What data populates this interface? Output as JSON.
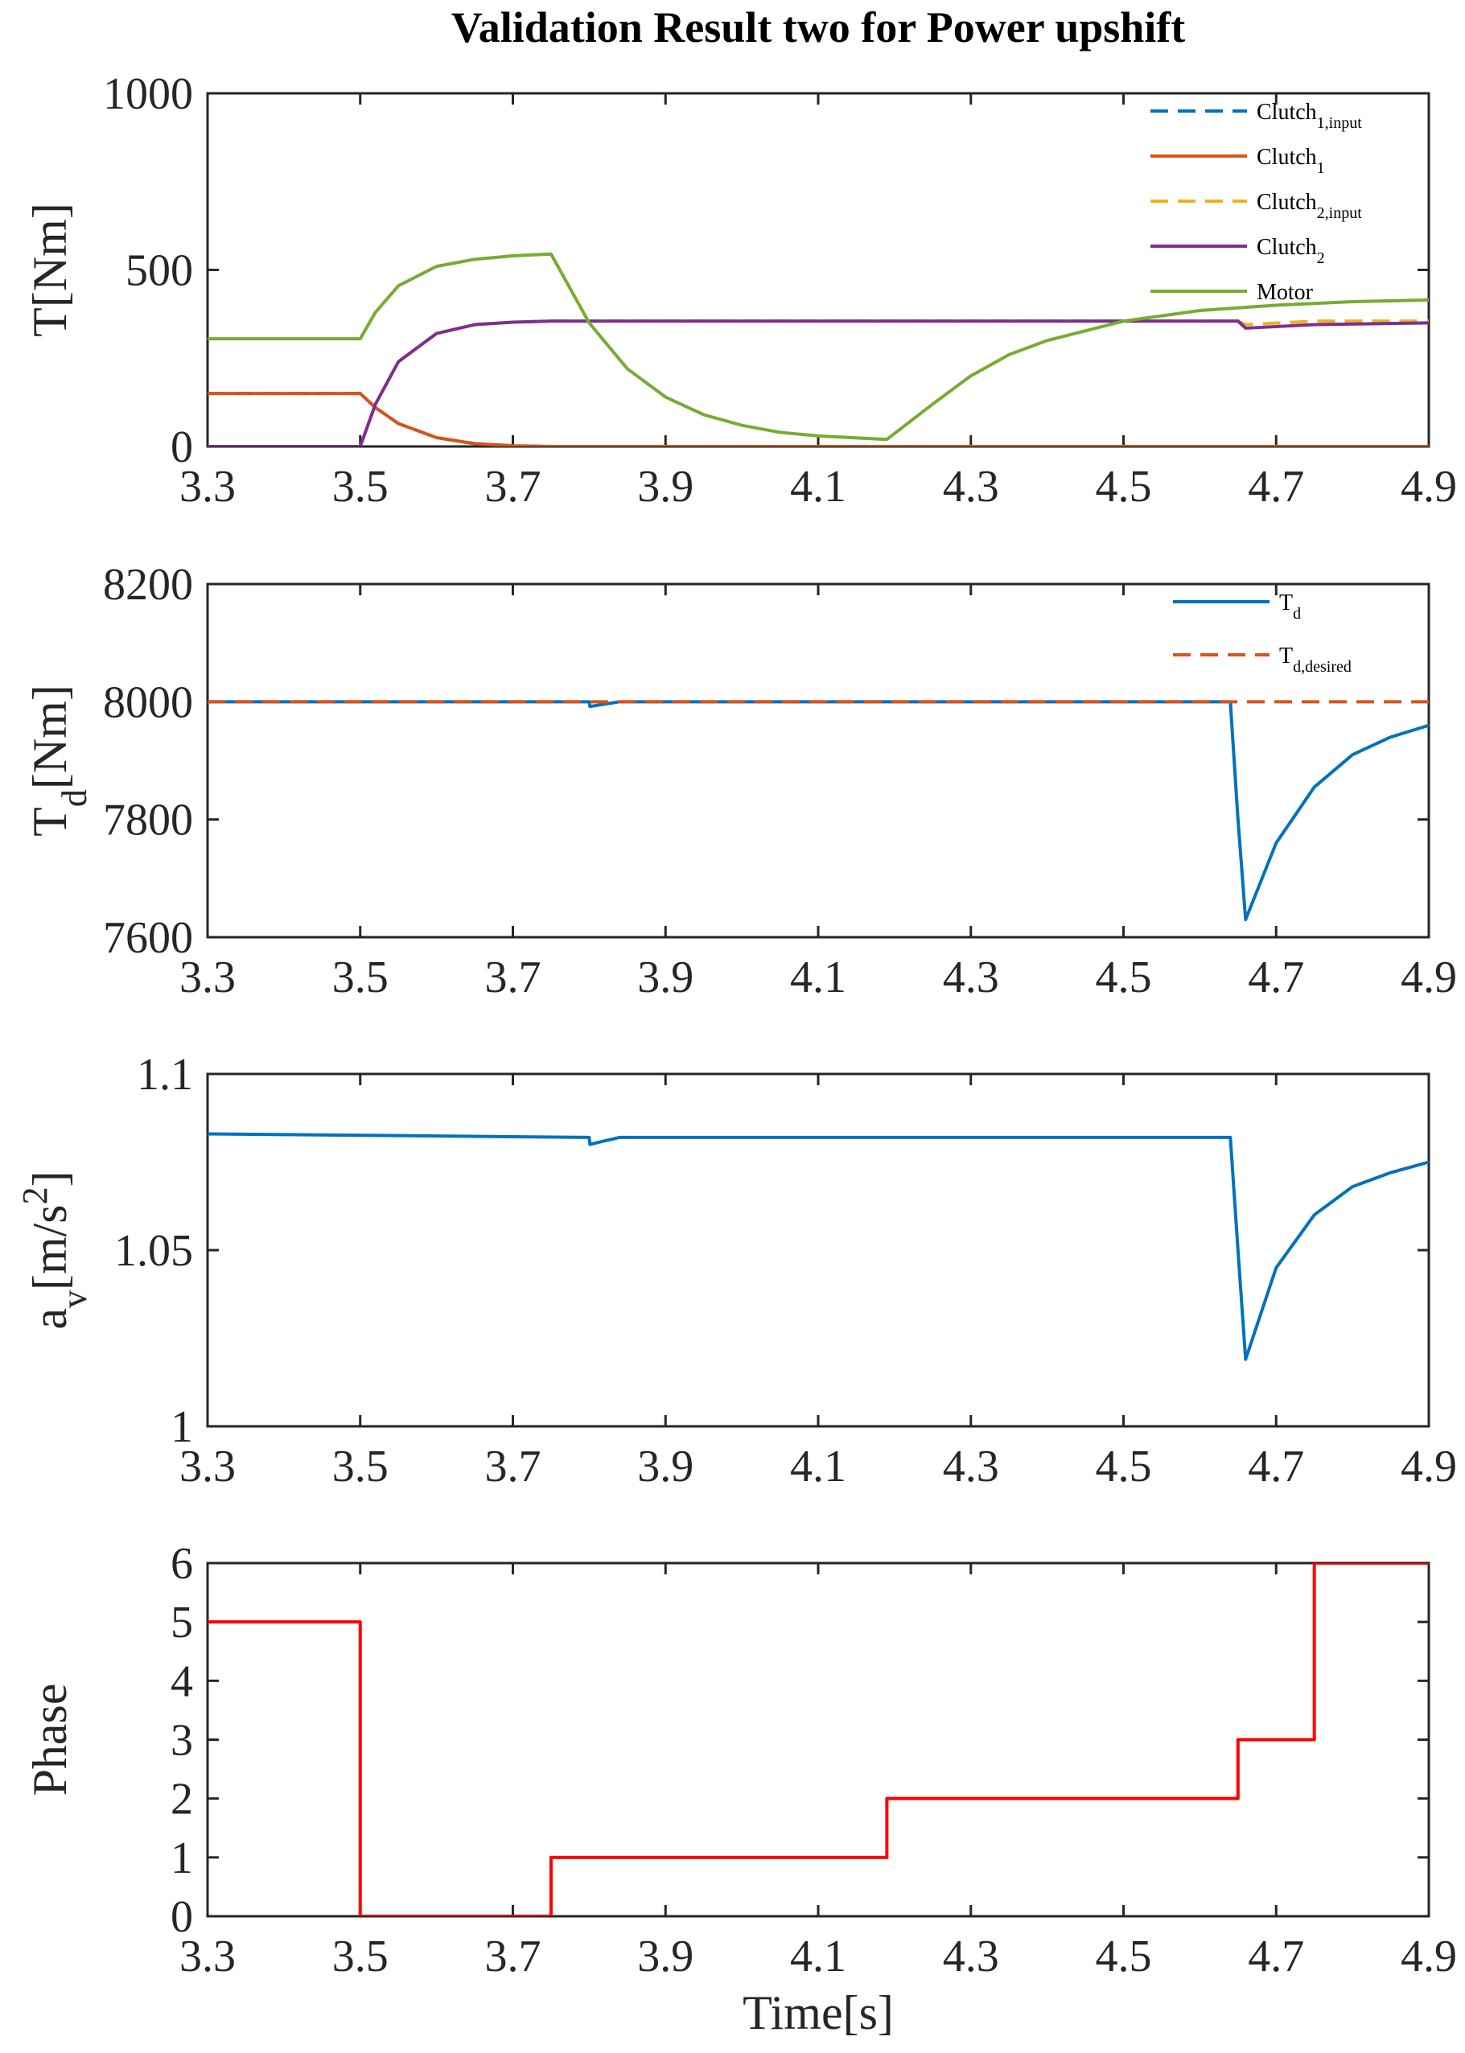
{
  "chart_data": [
    {
      "type": "line",
      "title": "Validation Result two for Power upshift",
      "ylabel": "T[Nm]",
      "xlim": [
        3.3,
        4.9
      ],
      "ylim": [
        0,
        1000
      ],
      "xticks": [
        "3.3",
        "3.5",
        "3.7",
        "3.9",
        "4.1",
        "4.3",
        "4.5",
        "4.7",
        "4.9"
      ],
      "yticks": [
        "0",
        "500",
        "1000"
      ],
      "legend_position": "top-right",
      "series": [
        {
          "name": "Clutch",
          "sub": "1,input",
          "color": "#0072BD",
          "dash": true,
          "x": [
            3.3,
            3.5,
            3.52,
            3.55,
            3.6,
            3.65,
            3.7,
            3.75,
            4.9
          ],
          "y": [
            150,
            150,
            110,
            65,
            25,
            8,
            2,
            0,
            0
          ]
        },
        {
          "name": "Clutch",
          "sub": "1",
          "color": "#D95319",
          "dash": false,
          "x": [
            3.3,
            3.5,
            3.52,
            3.55,
            3.6,
            3.65,
            3.7,
            3.75,
            4.9
          ],
          "y": [
            150,
            150,
            110,
            65,
            25,
            8,
            2,
            0,
            0
          ]
        },
        {
          "name": "Clutch",
          "sub": "2,input",
          "color": "#EDB120",
          "dash": true,
          "x": [
            3.3,
            3.5,
            3.52,
            3.55,
            3.6,
            3.65,
            3.7,
            3.75,
            4.65,
            4.66,
            4.75,
            4.9
          ],
          "y": [
            0,
            0,
            120,
            240,
            320,
            345,
            352,
            355,
            355,
            345,
            355,
            355
          ]
        },
        {
          "name": "Clutch",
          "sub": "2",
          "color": "#7E2F8E",
          "dash": false,
          "x": [
            3.3,
            3.5,
            3.52,
            3.55,
            3.6,
            3.65,
            3.7,
            3.75,
            4.65,
            4.66,
            4.75,
            4.9
          ],
          "y": [
            0,
            0,
            120,
            240,
            320,
            345,
            352,
            355,
            355,
            335,
            345,
            350
          ]
        },
        {
          "name": "Motor",
          "sub": "",
          "color": "#77AC30",
          "dash": false,
          "x": [
            3.3,
            3.5,
            3.52,
            3.55,
            3.6,
            3.65,
            3.7,
            3.75,
            3.8,
            3.85,
            3.9,
            3.95,
            4.0,
            4.05,
            4.1,
            4.19,
            4.25,
            4.3,
            4.35,
            4.4,
            4.5,
            4.6,
            4.7,
            4.8,
            4.9
          ],
          "y": [
            305,
            305,
            380,
            455,
            510,
            530,
            540,
            545,
            350,
            220,
            140,
            90,
            60,
            40,
            30,
            20,
            120,
            200,
            260,
            300,
            355,
            385,
            400,
            410,
            415
          ]
        }
      ]
    },
    {
      "type": "line",
      "ylabel": "T",
      "ylabel_sub": "d",
      "ylabel_suffix": "[Nm]",
      "xlim": [
        3.3,
        4.9
      ],
      "ylim": [
        7600,
        8200
      ],
      "xticks": [
        "3.3",
        "3.5",
        "3.7",
        "3.9",
        "4.1",
        "4.3",
        "4.5",
        "4.7",
        "4.9"
      ],
      "yticks": [
        "7600",
        "7800",
        "8000",
        "8200"
      ],
      "legend_position": "top-right",
      "series": [
        {
          "name": "T",
          "sub": "d",
          "color": "#0072BD",
          "dash": false,
          "x": [
            3.3,
            3.8,
            3.801,
            3.82,
            3.84,
            4.64,
            4.65,
            4.66,
            4.7,
            4.75,
            4.8,
            4.85,
            4.9
          ],
          "y": [
            8000,
            8000,
            7992,
            7996,
            8000,
            8000,
            7800,
            7630,
            7760,
            7855,
            7910,
            7940,
            7960
          ]
        },
        {
          "name": "T",
          "sub": "d,desired",
          "color": "#D95319",
          "dash": true,
          "x": [
            3.3,
            4.9
          ],
          "y": [
            8000,
            8000
          ]
        }
      ]
    },
    {
      "type": "line",
      "ylabel": "a",
      "ylabel_sub": "v",
      "ylabel_suffix": "[m/s",
      "ylabel_sup": "2",
      "ylabel_end": "]",
      "xlim": [
        3.3,
        4.9
      ],
      "ylim": [
        1,
        1.1
      ],
      "xticks": [
        "3.3",
        "3.5",
        "3.7",
        "3.9",
        "4.1",
        "4.3",
        "4.5",
        "4.7",
        "4.9"
      ],
      "yticks": [
        "1",
        "1.05",
        "1.1"
      ],
      "series": [
        {
          "name": "a_v",
          "color": "#0072BD",
          "dash": false,
          "x": [
            3.3,
            3.8,
            3.801,
            3.82,
            3.84,
            4.64,
            4.65,
            4.66,
            4.7,
            4.75,
            4.8,
            4.85,
            4.9
          ],
          "y": [
            1.083,
            1.082,
            1.08,
            1.081,
            1.082,
            1.082,
            1.05,
            1.019,
            1.045,
            1.06,
            1.068,
            1.072,
            1.075
          ]
        }
      ]
    },
    {
      "type": "line",
      "ylabel": "Phase",
      "xlabel": "Time[s]",
      "xlim": [
        3.3,
        4.9
      ],
      "ylim": [
        0,
        6
      ],
      "xticks": [
        "3.3",
        "3.5",
        "3.7",
        "3.9",
        "4.1",
        "4.3",
        "4.5",
        "4.7",
        "4.9"
      ],
      "yticks": [
        "0",
        "1",
        "2",
        "3",
        "4",
        "5",
        "6"
      ],
      "series": [
        {
          "name": "Phase",
          "color": "#FF0000",
          "dash": false,
          "step": true,
          "x": [
            3.3,
            3.5,
            3.75,
            4.19,
            4.65,
            4.75,
            4.9
          ],
          "y": [
            5,
            0,
            1,
            2,
            3,
            6,
            6
          ]
        }
      ]
    }
  ]
}
